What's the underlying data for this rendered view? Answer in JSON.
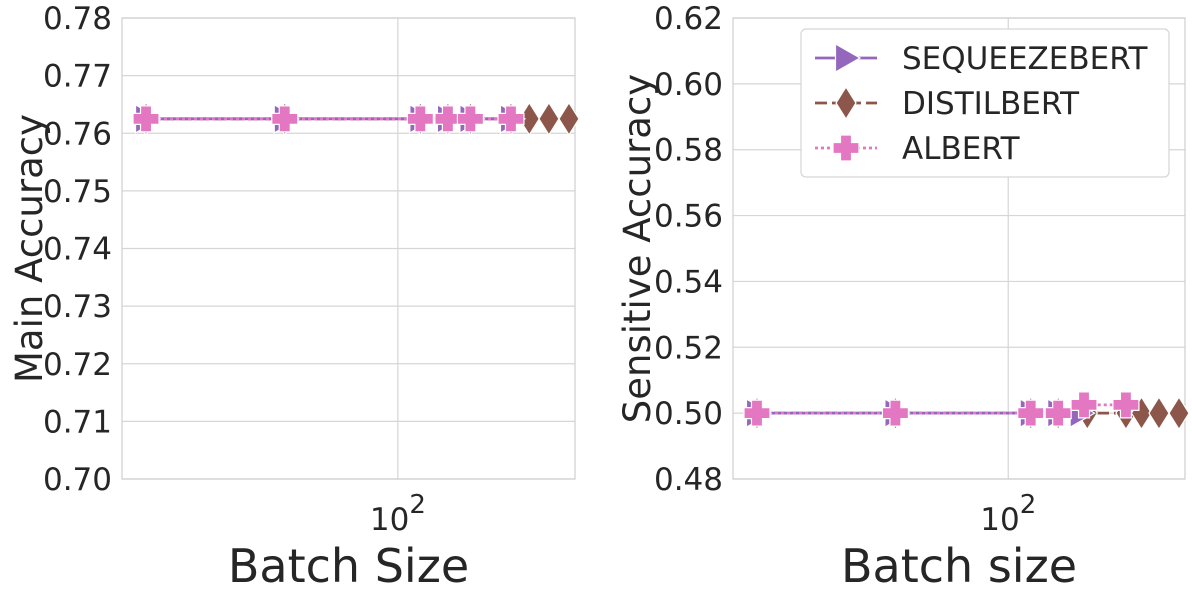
{
  "chart_data": [
    {
      "type": "line",
      "xlabel": "Batch Size",
      "ylabel": "Main Accuracy",
      "xscale": "log",
      "xlim": [
        10.7,
        420
      ],
      "ylim": [
        0.7,
        0.78
      ],
      "y_ticks": [
        "0.70",
        "0.71",
        "0.72",
        "0.73",
        "0.74",
        "0.75",
        "0.76",
        "0.77",
        "0.78"
      ],
      "x_ticks": [
        {
          "base": "10",
          "exp": "2",
          "value": 100
        }
      ],
      "grid": true,
      "legend": false,
      "series": [
        {
          "name": "SEQUEEZEBERT",
          "color": "#9467bd",
          "marker": "triangle-right",
          "linestyle": "solid",
          "x": [
            13,
            40,
            120,
            150,
            180,
            250
          ],
          "y": [
            0.7625,
            0.7625,
            0.7625,
            0.7625,
            0.7625,
            0.7625
          ]
        },
        {
          "name": "DISTILBERT",
          "color": "#8c564b",
          "marker": "diamond",
          "linestyle": "dashed",
          "x": [
            13,
            40,
            120,
            150,
            180,
            250,
            290,
            340,
            400
          ],
          "y": [
            0.7625,
            0.7625,
            0.7625,
            0.7625,
            0.7625,
            0.7625,
            0.7625,
            0.7625,
            0.7625
          ]
        },
        {
          "name": "ALBERT",
          "color": "#e377c2",
          "marker": "plus",
          "linestyle": "dotted",
          "x": [
            13,
            40,
            120,
            150,
            180,
            250
          ],
          "y": [
            0.7625,
            0.7625,
            0.7625,
            0.7625,
            0.7625,
            0.7625
          ]
        }
      ]
    },
    {
      "type": "line",
      "xlabel": "Batch size",
      "ylabel": "Sensitive Accuracy",
      "xscale": "log",
      "xlim": [
        10.7,
        420
      ],
      "ylim": [
        0.48,
        0.62
      ],
      "y_ticks": [
        "0.48",
        "0.50",
        "0.52",
        "0.54",
        "0.56",
        "0.58",
        "0.60",
        "0.62"
      ],
      "x_ticks": [
        {
          "base": "10",
          "exp": "2",
          "value": 100
        }
      ],
      "grid": true,
      "legend": true,
      "legend_position": "top-right",
      "series": [
        {
          "name": "SEQUEEZEBERT",
          "color": "#9467bd",
          "marker": "triangle-right",
          "linestyle": "solid",
          "x": [
            13,
            40,
            120,
            150,
            180
          ],
          "y": [
            0.5,
            0.5,
            0.5,
            0.5,
            0.5
          ]
        },
        {
          "name": "DISTILBERT",
          "color": "#8c564b",
          "marker": "diamond",
          "linestyle": "dashed",
          "x": [
            13,
            40,
            120,
            150,
            190,
            260,
            295,
            340,
            400
          ],
          "y": [
            0.5,
            0.5,
            0.5,
            0.5,
            0.5,
            0.5,
            0.5,
            0.5,
            0.5
          ]
        },
        {
          "name": "ALBERT",
          "color": "#e377c2",
          "marker": "plus",
          "linestyle": "dotted",
          "x": [
            13,
            40,
            120,
            150,
            185,
            260
          ],
          "y": [
            0.5,
            0.5,
            0.5,
            0.5,
            0.5025,
            0.5025
          ]
        }
      ]
    }
  ]
}
